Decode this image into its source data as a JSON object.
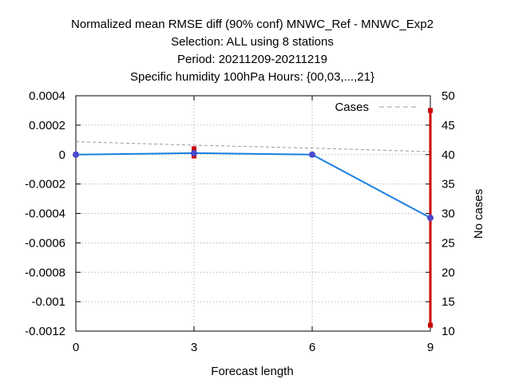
{
  "chart_data": {
    "type": "line",
    "title_lines": [
      "Normalized mean RMSE diff (90% conf) MNWC_Ref - MNWC_Exp2",
      "Selection: ALL using      8 stations",
      "Period: 20211209-20211219",
      "Specific humidity 100hPa   Hours: {00,03,...,21}"
    ],
    "xlabel": "Forecast length",
    "ylabel_left": "",
    "ylabel_right": "No cases",
    "x": [
      0,
      3,
      6,
      9
    ],
    "x_ticks": [
      "0",
      "3",
      "6",
      "9"
    ],
    "xlim": [
      0,
      9
    ],
    "ylim_left": [
      -0.0012,
      0.0004
    ],
    "y_ticks_left": [
      "0.0004",
      "0.0002",
      "0",
      "-0.0002",
      "-0.0004",
      "-0.0006",
      "-0.0008",
      "-0.001",
      "-0.0012"
    ],
    "ylim_right": [
      10,
      50
    ],
    "y_ticks_right": [
      "50",
      "45",
      "40",
      "35",
      "30",
      "25",
      "20",
      "15",
      "10"
    ],
    "grid": true,
    "legend_position": "top-right",
    "series": [
      {
        "kind": "mean-difference",
        "values": [
          0.0,
          1e-05,
          0.0,
          -0.00043
        ],
        "color": "#1a7fdf"
      },
      {
        "kind": "confidence-interval",
        "low": [
          0.0,
          -1e-05,
          0.0,
          -0.00116
        ],
        "high": [
          0.0,
          4e-05,
          0.0,
          0.0003
        ],
        "color": "#cc0000"
      },
      {
        "name": "Cases",
        "axis": "right",
        "values": [
          42.2,
          41.6,
          41.1,
          40.5
        ],
        "color": "#999999",
        "dashed": true
      }
    ]
  }
}
